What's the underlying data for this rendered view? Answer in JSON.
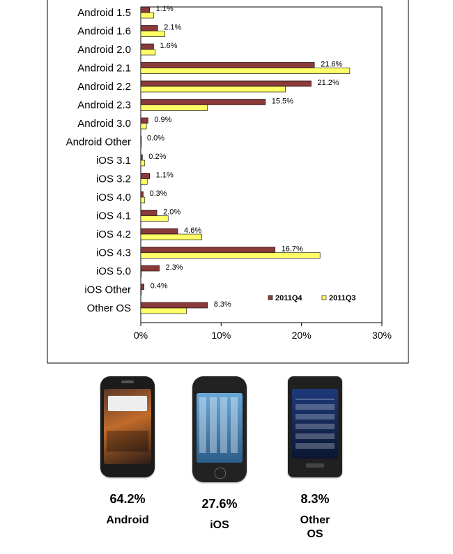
{
  "chart_data": {
    "type": "bar",
    "orientation": "horizontal",
    "categories": [
      "Android 1.5",
      "Android 1.6",
      "Android 2.0",
      "Android 2.1",
      "Android 2.2",
      "Android 2.3",
      "Android 3.0",
      "Android Other",
      "iOS 3.1",
      "iOS 3.2",
      "iOS 4.0",
      "iOS 4.1",
      "iOS 4.2",
      "iOS 4.3",
      "iOS 5.0",
      "iOS Other",
      "Other OS"
    ],
    "series": [
      {
        "name": "2011Q4",
        "color": "#8b3a3a",
        "values": [
          1.1,
          2.1,
          1.6,
          21.6,
          21.2,
          15.5,
          0.9,
          0.0,
          0.2,
          1.1,
          0.3,
          2.0,
          4.6,
          16.7,
          2.3,
          0.4,
          8.3
        ],
        "labels": [
          "1.1%",
          "2.1%",
          "1.6%",
          "21.6%",
          "21.2%",
          "15.5%",
          "0.9%",
          "0.0%",
          "0.2%",
          "1.1%",
          "0.3%",
          "2.0%",
          "4.6%",
          "16.7%",
          "2.3%",
          "0.4%",
          "8.3%"
        ]
      },
      {
        "name": "2011Q3",
        "color": "#ffff66",
        "values": [
          1.6,
          3.0,
          1.8,
          26.0,
          18.0,
          8.3,
          0.7,
          0.0,
          0.5,
          0.8,
          0.5,
          3.4,
          7.6,
          22.3,
          0.0,
          0.0,
          5.7
        ]
      }
    ],
    "xticks": [
      "0%",
      "10%",
      "20%",
      "30%"
    ],
    "xlim": [
      0,
      30
    ],
    "legend_position": "bottom-right",
    "grid": false
  },
  "summary": [
    {
      "percent": "64.2%",
      "os": "Android",
      "icon": "htc-android-phone"
    },
    {
      "percent": "27.6%",
      "os": "iOS",
      "icon": "iphone"
    },
    {
      "percent": "8.3%",
      "os": "Other\nOS",
      "icon": "samsung-phone"
    }
  ]
}
